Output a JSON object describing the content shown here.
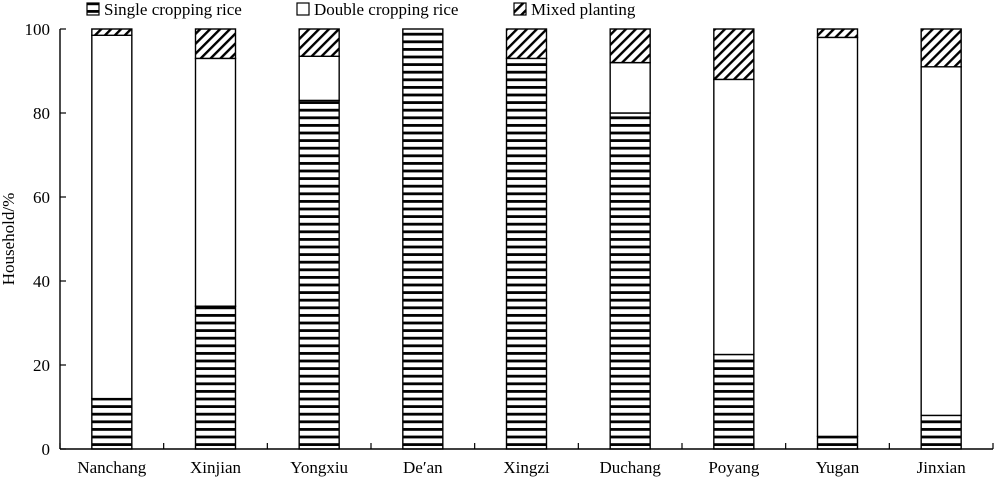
{
  "chart_data": {
    "type": "bar",
    "stacked": true,
    "title": "",
    "xlabel": "",
    "ylabel": "Household/%",
    "ylim": [
      0,
      100
    ],
    "yticks": [
      0,
      20,
      40,
      60,
      80,
      100
    ],
    "grid": false,
    "legend_position": "top",
    "categories": [
      "Nanchang",
      "Xinjian",
      "Yongxiu",
      "De′an",
      "Xingzi",
      "Duchang",
      "Poyang",
      "Yugan",
      "Jinxian"
    ],
    "series": [
      {
        "name": "Single cropping rice",
        "pattern": "horizontal-lines",
        "values": [
          12,
          34,
          83,
          100,
          93,
          80,
          22.5,
          3,
          8
        ]
      },
      {
        "name": "Double cropping rice",
        "pattern": "none",
        "values": [
          86.5,
          59,
          10.5,
          0,
          0,
          12,
          65.5,
          95,
          83
        ]
      },
      {
        "name": "Mixed planting",
        "pattern": "diagonal-hatch",
        "values": [
          1.5,
          7,
          6.5,
          0,
          7,
          8,
          12,
          2,
          9
        ]
      }
    ]
  }
}
